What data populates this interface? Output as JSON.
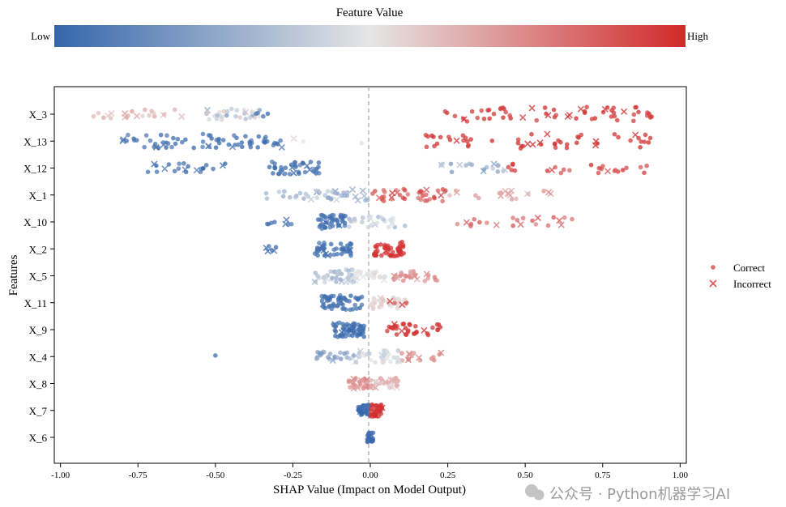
{
  "chart_data": {
    "type": "scatter",
    "subtype": "shap-beeswarm",
    "xlabel": "SHAP Value (Impact on Model Output)",
    "ylabel": "Features",
    "xlim": [
      -1.02,
      1.02
    ],
    "x_ticks": [
      -1.0,
      -0.75,
      -0.5,
      -0.25,
      0.0,
      0.25,
      0.5,
      0.75,
      1.0
    ],
    "x_tick_labels": [
      "-1.00",
      "-0.75",
      "-0.50",
      "-0.25",
      "0.00",
      "0.25",
      "0.50",
      "0.75",
      "1.00"
    ],
    "zero_line": true,
    "colorbar": {
      "title": "Feature Value",
      "low_label": "Low",
      "high_label": "High",
      "colors": [
        "#3466ab",
        "#e6e6e6",
        "#d12a2a"
      ]
    },
    "legend": {
      "placement": "right",
      "entries": [
        {
          "label": "Correct",
          "marker": "circle"
        },
        {
          "label": "Incorrect",
          "marker": "x"
        }
      ],
      "color": "#d9534f"
    },
    "cluster_format": [
      "shap_min",
      "shap_max",
      "count",
      "feature_value_min",
      "feature_value_max",
      "incorrect_fraction"
    ],
    "features": [
      {
        "name": "X_3",
        "clusters": [
          [
            -0.93,
            -0.6,
            22,
            0.55,
            0.7,
            0.25
          ],
          [
            -0.55,
            -0.3,
            30,
            0.2,
            0.65,
            0.2
          ],
          [
            -0.37,
            -0.33,
            4,
            0.0,
            0.1,
            0
          ],
          [
            0.23,
            0.92,
            60,
            0.93,
            1.0,
            0.12
          ]
        ]
      },
      {
        "name": "X_13",
        "clusters": [
          [
            -0.8,
            -0.28,
            70,
            0.0,
            0.1,
            0.12
          ],
          [
            -0.25,
            -0.2,
            2,
            0.5,
            0.55,
            0.5
          ],
          [
            -0.03,
            -0.02,
            1,
            0.45,
            0.5,
            0
          ],
          [
            0.17,
            0.92,
            55,
            0.95,
            1.0,
            0.12
          ]
        ]
      },
      {
        "name": "X_12",
        "clusters": [
          [
            -0.72,
            -0.45,
            22,
            0.0,
            0.1,
            0.3
          ],
          [
            -0.34,
            -0.16,
            40,
            0.0,
            0.1,
            0.05
          ],
          [
            0.22,
            0.45,
            20,
            0.2,
            0.4,
            0.15
          ],
          [
            0.4,
            0.9,
            25,
            0.85,
            1.0,
            0.08
          ]
        ]
      },
      {
        "name": "X_1",
        "clusters": [
          [
            -0.35,
            -0.2,
            12,
            0.25,
            0.4,
            0.1
          ],
          [
            -0.2,
            0.0,
            30,
            0.2,
            0.45,
            0.15
          ],
          [
            0.0,
            0.25,
            40,
            0.8,
            0.95,
            0.1
          ],
          [
            0.25,
            0.6,
            20,
            0.6,
            0.75,
            0.35
          ]
        ]
      },
      {
        "name": "X_10",
        "clusters": [
          [
            -0.35,
            -0.2,
            8,
            0.0,
            0.1,
            0.25
          ],
          [
            -0.17,
            -0.08,
            45,
            0.0,
            0.1,
            0.05
          ],
          [
            -0.08,
            0.12,
            30,
            0.3,
            0.5,
            0.15
          ],
          [
            0.28,
            0.67,
            22,
            0.75,
            0.9,
            0.35
          ]
        ]
      },
      {
        "name": "X_2",
        "clusters": [
          [
            -0.35,
            -0.3,
            6,
            0.0,
            0.1,
            0.3
          ],
          [
            -0.18,
            -0.06,
            45,
            0.0,
            0.08,
            0.05
          ],
          [
            0.01,
            0.11,
            50,
            0.95,
            1.0,
            0.05
          ]
        ]
      },
      {
        "name": "X_5",
        "clusters": [
          [
            -0.18,
            -0.05,
            40,
            0.25,
            0.45,
            0.1
          ],
          [
            -0.05,
            0.05,
            25,
            0.45,
            0.55,
            0.2
          ],
          [
            0.05,
            0.22,
            30,
            0.65,
            0.8,
            0.15
          ]
        ]
      },
      {
        "name": "X_11",
        "clusters": [
          [
            -0.16,
            -0.02,
            55,
            0.0,
            0.08,
            0.03
          ],
          [
            0.0,
            0.12,
            35,
            0.5,
            0.6,
            0.1
          ],
          [
            0.05,
            0.12,
            4,
            0.85,
            0.95,
            0.5
          ]
        ]
      },
      {
        "name": "X_9",
        "clusters": [
          [
            -0.12,
            -0.02,
            60,
            0.0,
            0.08,
            0.1
          ],
          [
            0.05,
            0.23,
            35,
            0.95,
            1.0,
            0.12
          ]
        ]
      },
      {
        "name": "X_4",
        "clusters": [
          [
            -0.5,
            -0.5,
            1,
            0.0,
            0.05,
            0
          ],
          [
            -0.18,
            -0.05,
            25,
            0.15,
            0.35,
            0.1
          ],
          [
            -0.05,
            0.1,
            35,
            0.35,
            0.55,
            0.15
          ],
          [
            0.1,
            0.25,
            15,
            0.65,
            0.8,
            0.3
          ]
        ]
      },
      {
        "name": "X_8",
        "clusters": [
          [
            -0.07,
            0.0,
            30,
            0.65,
            0.8,
            0.15
          ],
          [
            0.0,
            0.09,
            30,
            0.55,
            0.75,
            0.15
          ]
        ]
      },
      {
        "name": "X_7",
        "clusters": [
          [
            -0.04,
            0.0,
            35,
            0.0,
            0.05,
            0.05
          ],
          [
            0.0,
            0.04,
            35,
            0.95,
            1.0,
            0.05
          ]
        ]
      },
      {
        "name": "X_6",
        "clusters": [
          [
            -0.01,
            0.01,
            25,
            0.0,
            0.05,
            0
          ]
        ]
      }
    ]
  },
  "watermark": "公众号 · Python机器学习AI"
}
